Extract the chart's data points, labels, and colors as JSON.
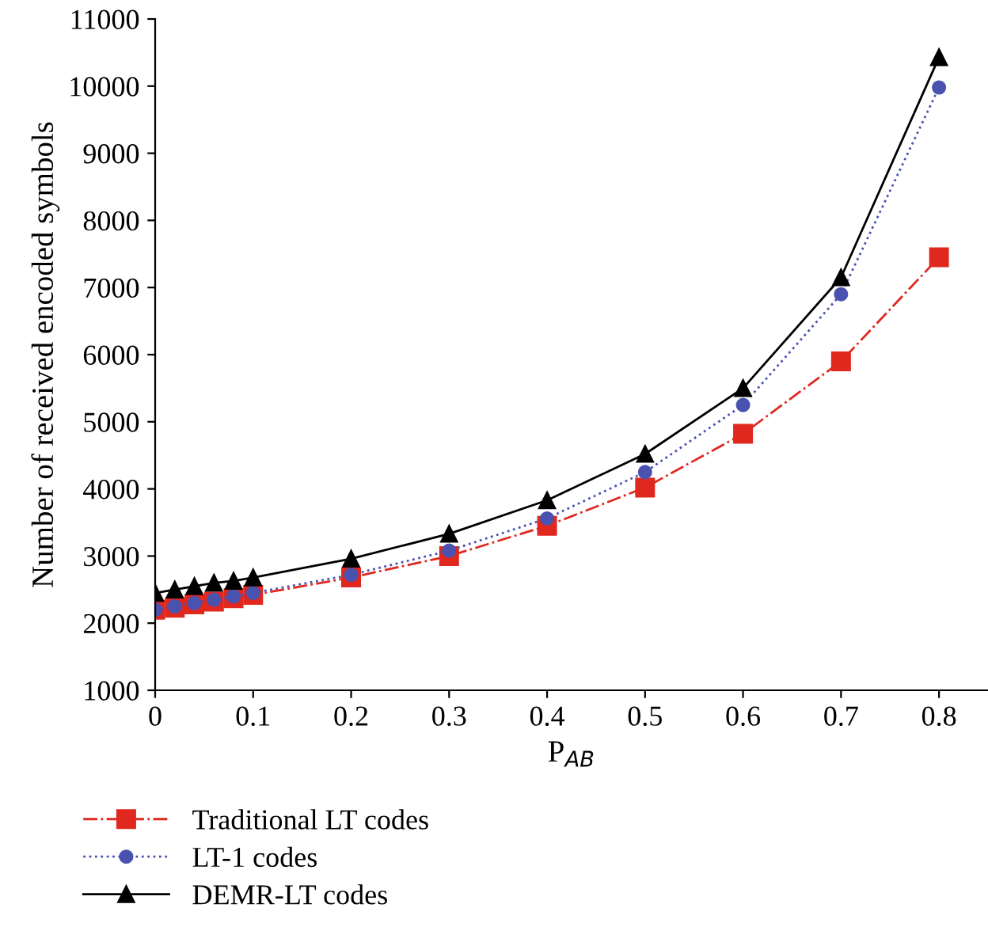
{
  "chart_data": {
    "type": "line",
    "xlabel": "P$_{AB}$",
    "ylabel": "Number of received encoded symbols",
    "x": [
      0,
      0.02,
      0.04,
      0.06,
      0.08,
      0.1,
      0.2,
      0.3,
      0.4,
      0.5,
      0.6,
      0.7,
      0.8
    ],
    "xlim": [
      0,
      0.85
    ],
    "xticks": [
      0,
      0.1,
      0.2,
      0.3,
      0.4,
      0.5,
      0.6,
      0.7,
      0.8
    ],
    "ylim": [
      1000,
      11000
    ],
    "yticks": [
      1000,
      2000,
      3000,
      4000,
      5000,
      6000,
      7000,
      8000,
      9000,
      10000,
      11000
    ],
    "grid": false,
    "legend": "bottom",
    "series": [
      {
        "name": "Traditional LT codes",
        "color": "#e0281e",
        "marker": "square",
        "line_style": "dashdot",
        "values": [
          2200,
          2230,
          2280,
          2320,
          2370,
          2420,
          2680,
          3000,
          3450,
          4020,
          4820,
          5900,
          7450
        ]
      },
      {
        "name": "LT-1 codes",
        "color": "#4a52b0",
        "marker": "circle",
        "line_style": "dotted",
        "values": [
          2200,
          2250,
          2300,
          2350,
          2400,
          2450,
          2720,
          3080,
          3560,
          4250,
          5250,
          6900,
          9980
        ]
      },
      {
        "name": "DEMR-LT codes",
        "color": "#000000",
        "marker": "triangle",
        "line_style": "solid",
        "values": [
          2450,
          2500,
          2550,
          2600,
          2630,
          2680,
          2960,
          3330,
          3830,
          4520,
          5500,
          7150,
          10430
        ]
      }
    ]
  }
}
